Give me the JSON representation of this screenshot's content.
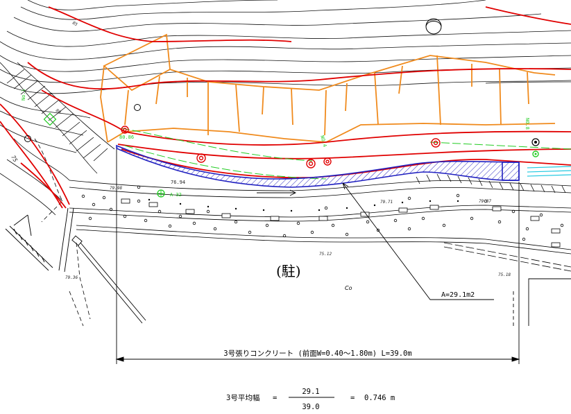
{
  "annotation": {
    "area_label": "A=29.1m2",
    "dimension_label": "3号張りコンクリート  (前面W=0.40～1.80m)    L=39.0m"
  },
  "formula": {
    "lhs": "3号平均幅",
    "eq1": "=",
    "numerator": "29.1",
    "denominator": "39.0",
    "eq2": "=",
    "result": "0.746 m"
  },
  "map_labels": {
    "parking_symbol": "(駐)",
    "surface_code": "Co",
    "contour_80": "80",
    "contour_75": "75",
    "contour_85": "85",
    "compass": "(ト)"
  },
  "spot_heights": [
    "75.12",
    "75.18",
    "79.71",
    "79.87",
    "79.98",
    "76.94",
    "79.36"
  ],
  "survey_labels": [
    "No.1",
    "A-32",
    "NO.4",
    "NO.8",
    "80.86"
  ],
  "colors": {
    "contour": "#000000",
    "slope_line": "#e00000",
    "crown": "#f08a1c",
    "hatch": "#2020c0",
    "survey": "#22cc22",
    "cyan": "#20c8e0"
  }
}
